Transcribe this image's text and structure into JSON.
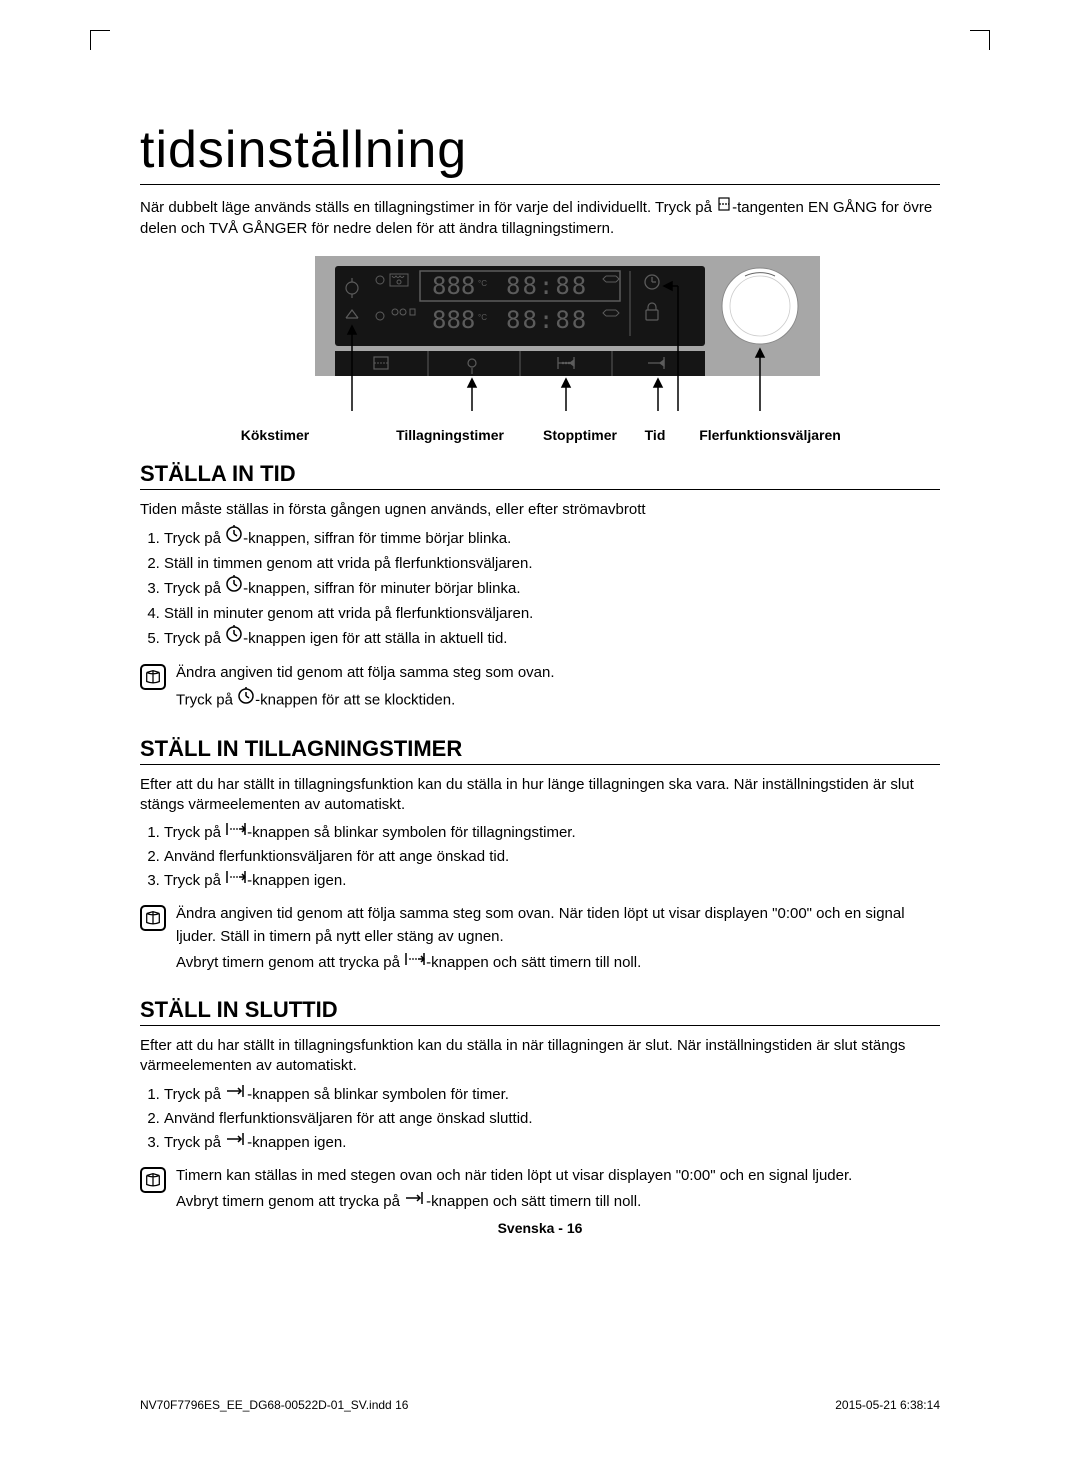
{
  "title": "tidsinställning",
  "intro_a": "När dubbelt läge används ställs en tillagningstimer in för varje del individuellt. Tryck på ",
  "intro_b": "-tangenten EN GÅNG for övre delen och TVÅ GÅNGER för nedre delen för att ändra tillagningstimern.",
  "panel": {
    "display_temp": "888",
    "display_time": "88:88",
    "labels": {
      "kokstimer": "Kökstimer",
      "tillagningstimer": "Tillagningstimer",
      "stopptimer": "Stopptimer",
      "tid": "Tid",
      "flerfunktionsvaljaren": "Flerfunktionsväljaren"
    },
    "colors": {
      "panel_bg": "#a7a7a7",
      "display_bg": "#151515",
      "display_fg": "#5c5c5c",
      "knob": "#ffffff"
    }
  },
  "sec1": {
    "h": "STÄLLA IN TID",
    "lead": "Tiden måste ställas in första gången ugnen används, eller efter strömavbrott",
    "steps": [
      {
        "a": "Tryck på ",
        "icon": "clock",
        "b": "-knappen, siffran för timme börjar blinka."
      },
      {
        "a": "Ställ in timmen genom att vrida på flerfunktionsväljaren.",
        "icon": null,
        "b": ""
      },
      {
        "a": "Tryck på ",
        "icon": "clock",
        "b": "-knappen, siffran för minuter börjar blinka."
      },
      {
        "a": "Ställ in minuter genom att vrida på flerfunktionsväljaren.",
        "icon": null,
        "b": ""
      },
      {
        "a": "Tryck på ",
        "icon": "clock",
        "b": "-knappen igen för att ställa in aktuell tid."
      }
    ],
    "note": {
      "p1a": "Ändra angiven tid genom att följa samma steg som ovan.",
      "p2a": "Tryck på ",
      "p2b": "-knappen för att se klocktiden."
    }
  },
  "sec2": {
    "h": "STÄLL IN TILLAGNINGSTIMER",
    "lead": "Efter att du har ställt in tillagningsfunktion kan du ställa in hur länge tillagningen ska vara. När inställningstiden är slut stängs värmeelementen av automatiskt.",
    "steps": [
      {
        "a": "Tryck på ",
        "icon": "duration",
        "b": "-knappen så blinkar symbolen för tillagningstimer."
      },
      {
        "a": "Använd flerfunktionsväljaren för att ange önskad tid.",
        "icon": null,
        "b": ""
      },
      {
        "a": "Tryck på ",
        "icon": "duration",
        "b": "-knappen igen."
      }
    ],
    "note": {
      "p1": "Ändra angiven tid genom att följa samma steg som ovan. När tiden löpt ut visar displayen \"0:00\" och en signal ljuder. Ställ in timern på nytt eller stäng av ugnen.",
      "p2a": "Avbryt timern genom att trycka på ",
      "p2b": "-knappen och sätt timern till noll."
    }
  },
  "sec3": {
    "h": "STÄLL IN SLUTTID",
    "lead": "Efter att du har ställt in tillagningsfunktion kan du ställa in när tillagningen är slut. När inställningstiden är slut stängs värmeelementen av automatiskt.",
    "steps": [
      {
        "a": "Tryck på ",
        "icon": "endtime",
        "b": "-knappen så blinkar symbolen för timer."
      },
      {
        "a": "Använd flerfunktionsväljaren för att ange önskad sluttid.",
        "icon": null,
        "b": ""
      },
      {
        "a": "Tryck på ",
        "icon": "endtime",
        "b": "-knappen igen."
      }
    ],
    "note": {
      "p1": "Timern kan ställas in med stegen ovan och när tiden löpt ut visar displayen \"0:00\" och en signal ljuder.",
      "p2a": "Avbryt timern genom att trycka på ",
      "p2b": "-knappen och sätt timern till noll."
    }
  },
  "footer": "Svenska - 16",
  "meta_left": "NV70F7796ES_EE_DG68-00522D-01_SV.indd   16",
  "meta_right": "2015-05-21    6:38:14"
}
